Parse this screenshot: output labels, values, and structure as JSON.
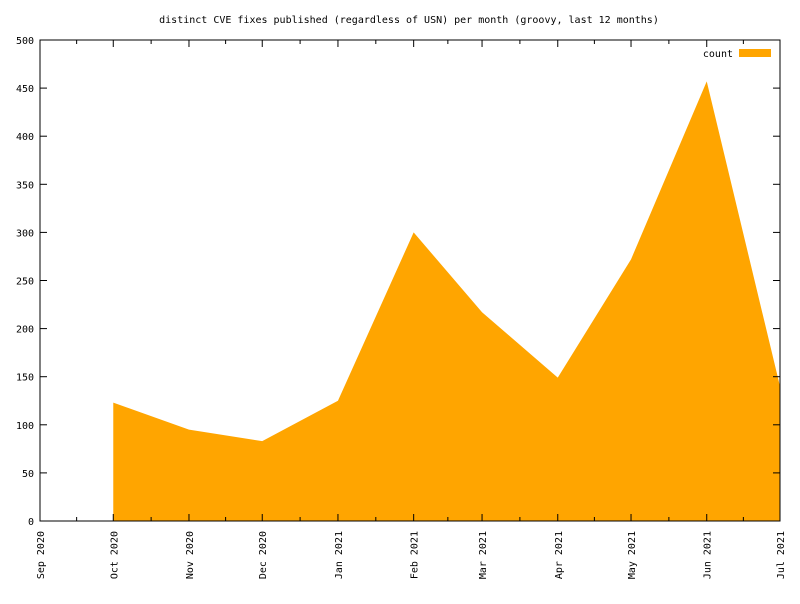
{
  "chart_data": {
    "type": "area",
    "title": "distinct CVE fixes published (regardless of USN) per month (groovy, last 12 months)",
    "xlabel": "",
    "ylabel": "",
    "x_tick_labels": [
      "Sep 2020",
      "Oct 2020",
      "Nov 2020",
      "Dec 2020",
      "Jan 2021",
      "Feb 2021",
      "Mar 2021",
      "Apr 2021",
      "May 2021",
      "Jun 2021",
      "Jul 2021"
    ],
    "y_tick_labels": [
      "0",
      "50",
      "100",
      "150",
      "200",
      "250",
      "300",
      "350",
      "400",
      "450",
      "500"
    ],
    "ylim": [
      0,
      500
    ],
    "xlim": [
      "2020-09-01",
      "2021-07-01"
    ],
    "grid": false,
    "legend_position": "top-right",
    "series": [
      {
        "name": "count",
        "color": "#ffa500",
        "x": [
          "2020-10-01",
          "2020-11-01",
          "2020-12-01",
          "2021-01-01",
          "2021-02-01",
          "2021-03-01",
          "2021-04-01",
          "2021-05-01",
          "2021-06-01",
          "2021-07-01"
        ],
        "values": [
          123,
          95,
          83,
          125,
          300,
          217,
          149,
          272,
          457,
          140
        ]
      }
    ]
  }
}
